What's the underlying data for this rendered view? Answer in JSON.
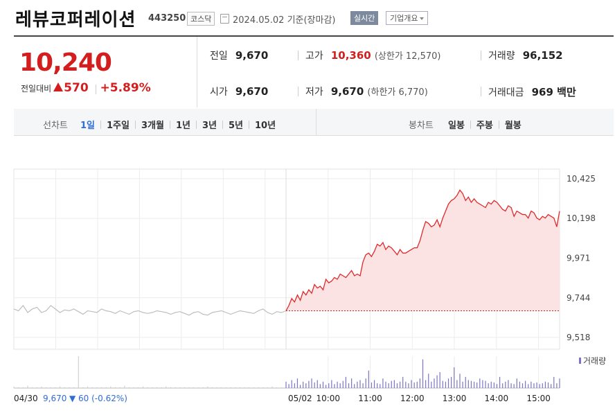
{
  "header": {
    "name": "레뷰코퍼레이션",
    "code": "443250",
    "market": "코스닥",
    "date_text": "2024.05.02 기준(장마감)",
    "realtime_label": "실시간",
    "company_label": "기업개요"
  },
  "summary": {
    "price": "10,240",
    "change_label": "전일대비",
    "change_amount": "570",
    "change_pct": "+5.89%",
    "stats": {
      "prev_close": {
        "label": "전일",
        "value": "9,670"
      },
      "high": {
        "label": "고가",
        "value": "10,360",
        "sub": "(상한가 12,570)"
      },
      "volume": {
        "label": "거래량",
        "value": "96,152"
      },
      "open": {
        "label": "시가",
        "value": "9,670"
      },
      "low": {
        "label": "저가",
        "value": "9,670",
        "sub": "(하한가 6,770)"
      },
      "amount": {
        "label": "거래대금",
        "value": "969 백만"
      }
    }
  },
  "controls": {
    "line_label": "선차트",
    "line_periods": [
      "1일",
      "1주일",
      "3개월",
      "1년",
      "3년",
      "5년",
      "10년"
    ],
    "active_period": "1일",
    "candle_label": "봉차트",
    "candle_periods": [
      "일봉",
      "주봉",
      "월봉"
    ]
  },
  "chart_data": {
    "type": "line",
    "title": "",
    "ylim": [
      9450,
      10480
    ],
    "yticks": [
      9518,
      9744,
      9971,
      10198,
      10425
    ],
    "ytick_labels": [
      "9,518",
      "9,744",
      "9,971",
      "10,198",
      "10,425"
    ],
    "xticks": [
      {
        "t": "10:00",
        "label": "10:00"
      },
      {
        "t": "11:00",
        "label": "11:00"
      },
      {
        "t": "12:00",
        "label": "12:00"
      },
      {
        "t": "13:00",
        "label": "13:00"
      },
      {
        "t": "14:00",
        "label": "14:00"
      },
      {
        "t": "15:00",
        "label": "15:00"
      }
    ],
    "prev_day": {
      "date_label": "04/30",
      "close_text": "9,670",
      "change_text": "60",
      "change_pct_text": "(-0.62%)",
      "values": [
        9680,
        9670,
        9700,
        9660,
        9680,
        9690,
        9660,
        9670,
        9700,
        9680,
        9660,
        9675,
        9670,
        9680,
        9665,
        9650,
        9670,
        9665,
        9660,
        9680,
        9670,
        9665,
        9655,
        9670,
        9660,
        9650,
        9665,
        9670,
        9660,
        9655,
        9660,
        9670,
        9665,
        9660,
        9650,
        9660,
        9665,
        9655,
        9645,
        9660,
        9665,
        9650,
        9645,
        9660,
        9665,
        9670,
        9660,
        9650,
        9660,
        9670,
        9665,
        9660,
        9655,
        9670,
        9680,
        9660,
        9650,
        9665,
        9660,
        9670
      ]
    },
    "series": [
      {
        "date_label": "05/02",
        "start_time": "09:00",
        "end_time": "15:30",
        "values": [
          9670,
          9700,
          9740,
          9720,
          9760,
          9730,
          9780,
          9760,
          9790,
          9770,
          9820,
          9800,
          9810,
          9790,
          9850,
          9830,
          9840,
          9860,
          9850,
          9880,
          9870,
          9860,
          9880,
          9900,
          9870,
          9880,
          9870,
          9950,
          9990,
          10000,
          9980,
          10010,
          10050,
          10040,
          10060,
          10020,
          10040,
          10030,
          10010,
          9990,
          10020,
          10000,
          10000,
          10010,
          10020,
          10030,
          10030,
          10070,
          10130,
          10180,
          10170,
          10150,
          10160,
          10190,
          10150,
          10200,
          10240,
          10280,
          10300,
          10310,
          10330,
          10360,
          10340,
          10300,
          10320,
          10290,
          10310,
          10290,
          10280,
          10270,
          10260,
          10290,
          10280,
          10300,
          10290,
          10270,
          10250,
          10240,
          10270,
          10260,
          10210,
          10240,
          10230,
          10220,
          10220,
          10200,
          10240,
          10230,
          10200,
          10190,
          10210,
          10200,
          10220,
          10210,
          10200,
          10150,
          10240
        ]
      }
    ],
    "base_value": 9670,
    "volume": {
      "legend": "거래량",
      "prev_day": [
        2,
        1,
        1,
        3,
        1,
        1,
        2,
        1,
        1,
        1,
        2,
        1,
        1,
        1,
        40,
        1,
        2,
        1,
        1,
        1,
        1,
        2,
        1,
        1,
        3,
        1,
        1,
        1,
        2,
        1,
        1,
        1,
        1,
        2,
        1,
        1,
        1,
        1,
        1,
        1,
        1,
        1,
        2,
        1,
        1,
        1,
        1,
        1,
        1,
        1,
        1,
        1,
        1,
        1,
        1,
        1,
        2,
        1,
        1,
        3
      ],
      "today": [
        8,
        5,
        10,
        6,
        12,
        4,
        8,
        6,
        9,
        12,
        7,
        10,
        5,
        8,
        4,
        6,
        10,
        5,
        8,
        6,
        9,
        14,
        6,
        12,
        5,
        8,
        10,
        6,
        12,
        22,
        7,
        10,
        6,
        5,
        12,
        8,
        6,
        9,
        10,
        6,
        8,
        14,
        8,
        6,
        10,
        7,
        8,
        12,
        36,
        10,
        18,
        8,
        12,
        16,
        20,
        9,
        8,
        12,
        14,
        26,
        10,
        18,
        8,
        14,
        10,
        9,
        8,
        7,
        12,
        10,
        9,
        6,
        8,
        7,
        5,
        14,
        6,
        8,
        10,
        6,
        5,
        12,
        8,
        6,
        9,
        5,
        8,
        6,
        7,
        5,
        6,
        8,
        7,
        5,
        14,
        6,
        12
      ]
    }
  }
}
